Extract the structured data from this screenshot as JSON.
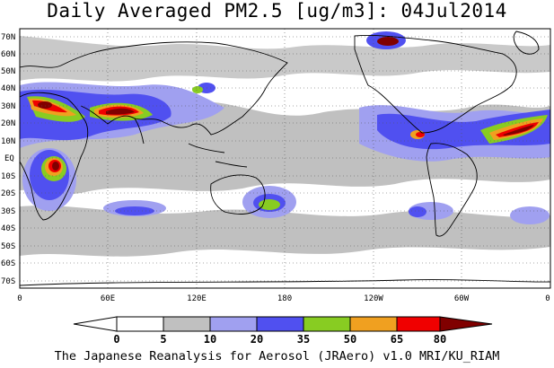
{
  "title": "Daily Averaged PM2.5 [ug/m3]: 04Jul2014",
  "footer": "The Japanese Reanalysis for Aerosol (JRAero) v1.0 MRI/KU_RIAM",
  "map": {
    "lon_ticks": [
      "0",
      "60E",
      "120E",
      "180",
      "120W",
      "60W",
      "0"
    ],
    "lat_ticks": [
      "70N",
      "60N",
      "50N",
      "40N",
      "30N",
      "20N",
      "10N",
      "EQ",
      "10S",
      "20S",
      "30S",
      "40S",
      "50S",
      "60S",
      "70S"
    ],
    "lon_range": [
      0,
      360
    ],
    "lat_range": [
      -75,
      75
    ],
    "gridlines": true
  },
  "colorbar": {
    "levels": [
      "0",
      "5",
      "10",
      "20",
      "35",
      "50",
      "65",
      "80"
    ],
    "colors": [
      "#ffffff",
      "#c0c0c0",
      "#a0a0f0",
      "#5050f0",
      "#88cc22",
      "#f0a020",
      "#f00000",
      "#800000"
    ]
  }
}
